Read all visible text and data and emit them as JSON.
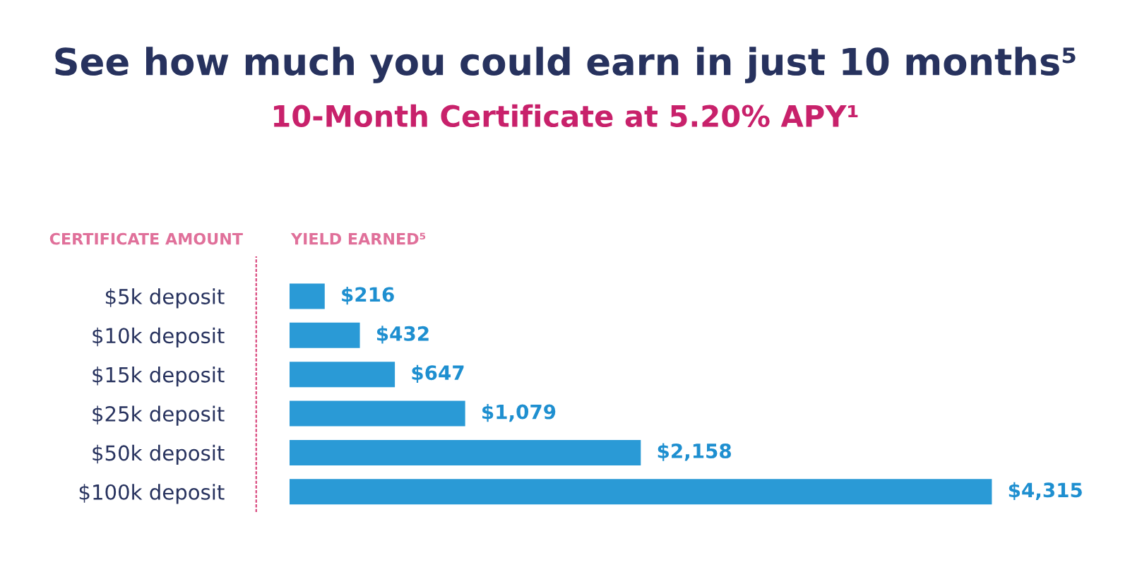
{
  "chart_data": {
    "type": "bar",
    "orientation": "horizontal",
    "title": "See how much you could earn in just 10 months⁵",
    "subtitle": "10-Month Certificate at 5.20% APY¹",
    "ylabel": "CERTIFICATE AMOUNT",
    "xlabel": "YIELD EARNED⁵",
    "categories": [
      "$5k deposit",
      "$10k deposit",
      "$15k deposit",
      "$25k deposit",
      "$50k deposit",
      "$100k deposit"
    ],
    "values": [
      216,
      432,
      647,
      1079,
      2158,
      4315
    ],
    "value_labels": [
      "$216",
      "$432",
      "$647",
      "$1,079",
      "$2,158",
      "$4,315"
    ],
    "color": "#2a9ad6",
    "grid": false,
    "legend": false
  }
}
